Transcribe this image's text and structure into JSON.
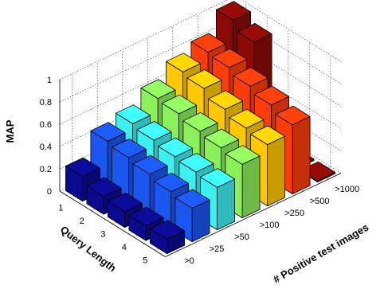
{
  "chart_data": {
    "type": "bar3d",
    "title": "",
    "zlabel": "MAP",
    "xlabel": "Query Length",
    "ylabel": "# Positive test images",
    "x_categories": [
      "1",
      "2",
      "3",
      "4",
      "5"
    ],
    "y_categories": [
      ">0",
      ">25",
      ">50",
      ">100",
      ">250",
      ">500",
      ">1000"
    ],
    "z_ticks": [
      "0",
      "0.2",
      "0.4",
      "0.6",
      "0.8",
      "1"
    ],
    "zlim": [
      0,
      1
    ],
    "grid": true,
    "colormap": [
      "#0a0a90",
      "#1a56f0",
      "#3cf0f0",
      "#8cf05a",
      "#ffc800",
      "#ff3c0a",
      "#8c0a05"
    ],
    "values": [
      [
        0.22,
        0.43,
        0.48,
        0.6,
        0.73,
        0.8,
        0.98
      ],
      [
        0.16,
        0.4,
        0.45,
        0.58,
        0.7,
        0.78,
        0.9
      ],
      [
        0.14,
        0.37,
        0.42,
        0.54,
        0.63,
        0.73,
        0.0
      ],
      [
        0.13,
        0.33,
        0.4,
        0.51,
        0.58,
        0.68,
        0.0
      ],
      [
        0.13,
        0.3,
        0.38,
        0.48,
        0.55,
        0.62,
        0.0
      ]
    ]
  }
}
